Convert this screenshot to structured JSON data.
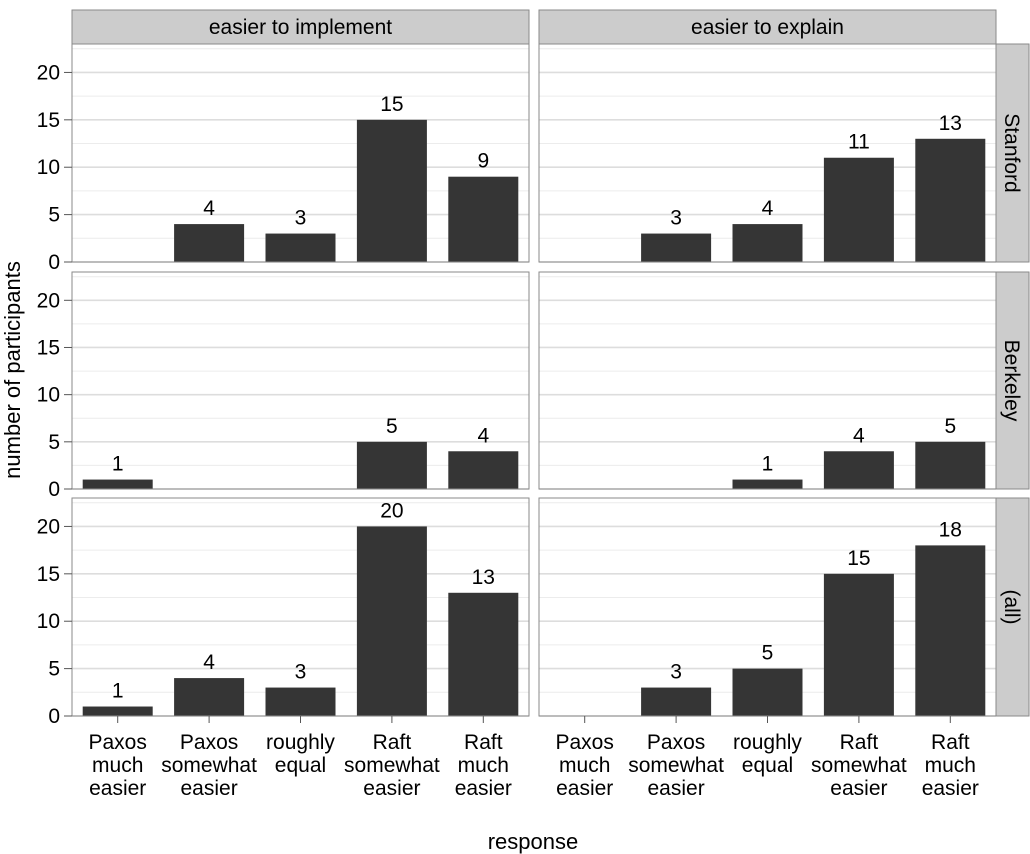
{
  "chart_data": {
    "type": "bar",
    "layout": "facet-grid",
    "columns": [
      "easier to implement",
      "easier to explain"
    ],
    "rows": [
      "Stanford",
      "Berkeley",
      "(all)"
    ],
    "categories": [
      [
        "Paxos",
        "much",
        "easier"
      ],
      [
        "Paxos",
        "somewhat",
        "easier"
      ],
      [
        "roughly",
        "equal"
      ],
      [
        "Raft",
        "somewhat",
        "easier"
      ],
      [
        "Raft",
        "much",
        "easier"
      ]
    ],
    "ylabel": "number of participants",
    "xlabel": "response",
    "ylim": [
      0,
      23
    ],
    "yticks": [
      0,
      5,
      10,
      15,
      20
    ],
    "grid": true,
    "bar_color": "#353535",
    "panel_background": "#ffffff",
    "strip_background": "#cccccc",
    "grid_color": "#dddddd",
    "panels": [
      {
        "row": "Stanford",
        "column": "easier to implement",
        "values": [
          0,
          4,
          3,
          15,
          9
        ]
      },
      {
        "row": "Stanford",
        "column": "easier to explain",
        "values": [
          0,
          3,
          4,
          11,
          13
        ]
      },
      {
        "row": "Berkeley",
        "column": "easier to implement",
        "values": [
          1,
          0,
          0,
          5,
          4
        ]
      },
      {
        "row": "Berkeley",
        "column": "easier to explain",
        "values": [
          0,
          0,
          1,
          4,
          5
        ]
      },
      {
        "row": "(all)",
        "column": "easier to implement",
        "values": [
          1,
          4,
          3,
          20,
          13
        ]
      },
      {
        "row": "(all)",
        "column": "easier to explain",
        "values": [
          0,
          3,
          5,
          15,
          18
        ]
      }
    ]
  }
}
